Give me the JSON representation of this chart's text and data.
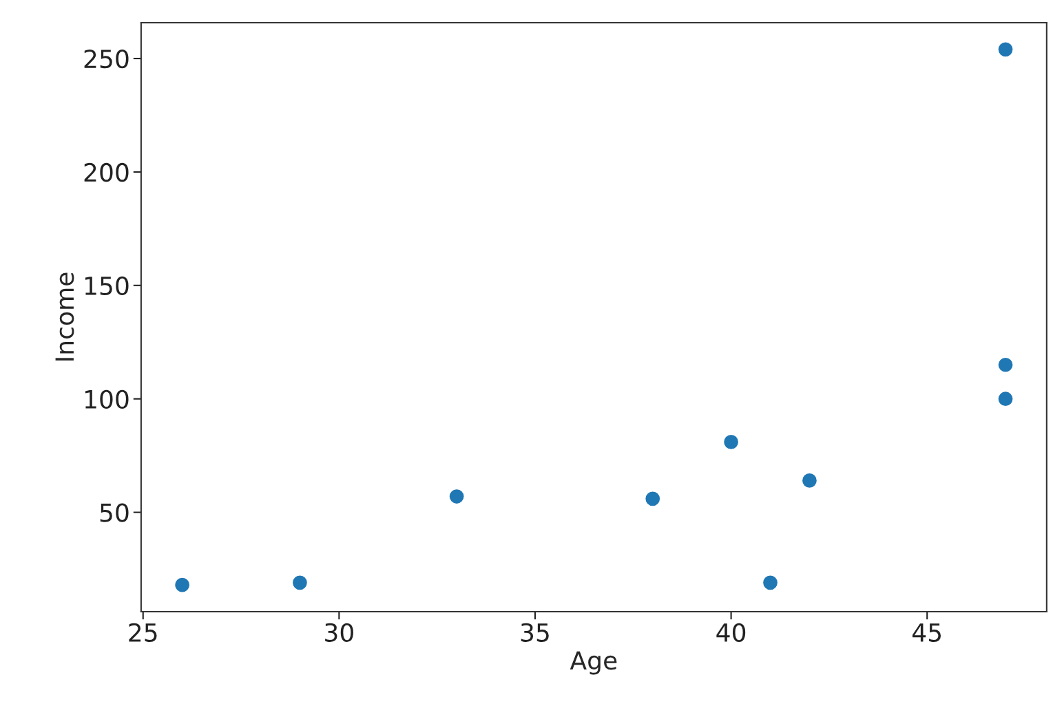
{
  "chart_data": {
    "type": "scatter",
    "xlabel": "Age",
    "ylabel": "Income",
    "x": [
      26,
      29,
      33,
      38,
      40,
      41,
      42,
      47,
      47,
      47
    ],
    "series": [
      {
        "color": "#1f77b4",
        "values": [
          18,
          19,
          57,
          56,
          81,
          19,
          64,
          100,
          115,
          254
        ]
      }
    ],
    "xlim": [
      24.95,
      48.05
    ],
    "ylim": [
      6.2,
      265.8
    ],
    "xticks": [
      25,
      30,
      35,
      40,
      45
    ],
    "yticks": [
      50,
      100,
      150,
      200,
      250
    ],
    "marker": "circle",
    "grid": false
  }
}
